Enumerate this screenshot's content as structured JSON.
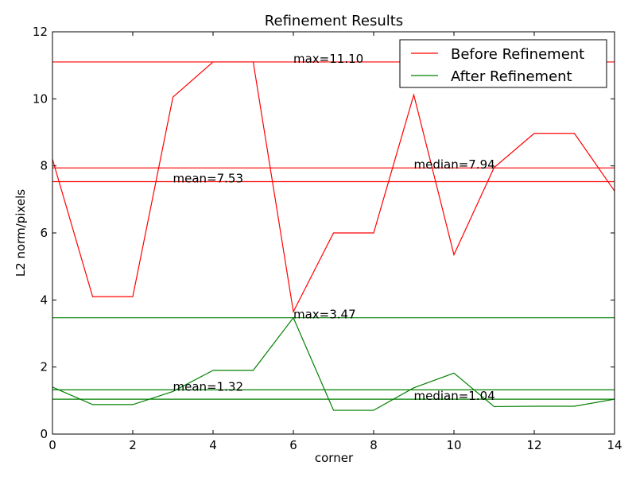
{
  "chart_data": {
    "type": "line",
    "title": "Refinement Results",
    "xlabel": "corner",
    "ylabel": "L2 norm/pixels",
    "xlim": [
      0,
      14
    ],
    "ylim": [
      0,
      12
    ],
    "xticks": [
      0,
      2,
      4,
      6,
      8,
      10,
      12,
      14
    ],
    "yticks": [
      0,
      2,
      4,
      6,
      8,
      10,
      12
    ],
    "grid": false,
    "legend_position": "top-right",
    "x": [
      0,
      1,
      2,
      3,
      4,
      5,
      6,
      7,
      8,
      9,
      10,
      11,
      12,
      13,
      14
    ],
    "series": [
      {
        "name": "Before Refinement",
        "color": "#ff0000",
        "values": [
          8.2,
          4.1,
          4.1,
          10.05,
          11.1,
          11.1,
          3.65,
          6.0,
          6.0,
          10.12,
          5.35,
          7.95,
          8.97,
          8.97,
          7.25
        ]
      },
      {
        "name": "After Refinement",
        "color": "#008000",
        "values": [
          1.4,
          0.88,
          0.88,
          1.27,
          1.9,
          1.9,
          3.47,
          0.71,
          0.71,
          1.38,
          1.82,
          0.82,
          0.83,
          0.83,
          1.04
        ]
      }
    ],
    "reference_lines": [
      {
        "series": 0,
        "y": 11.1,
        "label": "max=11.10",
        "label_x": 6
      },
      {
        "series": 0,
        "y": 7.94,
        "label": "median=7.94",
        "label_x": 9
      },
      {
        "series": 0,
        "y": 7.53,
        "label": "mean=7.53",
        "label_x": 3
      },
      {
        "series": 1,
        "y": 3.47,
        "label": "max=3.47",
        "label_x": 6
      },
      {
        "series": 1,
        "y": 1.32,
        "label": "mean=1.32",
        "label_x": 3
      },
      {
        "series": 1,
        "y": 1.04,
        "label": "median=1.04",
        "label_x": 9
      }
    ]
  }
}
